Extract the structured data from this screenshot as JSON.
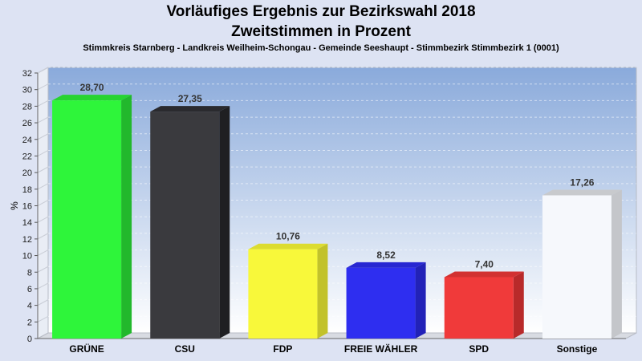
{
  "header": {
    "title_line1": "Vorläufiges Ergebnis zur Bezirkswahl 2018",
    "title_line2": "Zweitstimmen in Prozent",
    "subtitle": "Stimmkreis Starnberg - Landkreis Weilheim-Schongau - Gemeinde Seeshaupt - Stimmbezirk Stimmbezirk 1 (0001)"
  },
  "chart_data": {
    "type": "bar",
    "title": "Vorläufiges Ergebnis zur Bezirkswahl 2018",
    "subtitle": "Zweitstimmen in Prozent",
    "ylabel": "%",
    "xlabel": "",
    "ylim": [
      0,
      32
    ],
    "yticks": [
      0,
      2,
      4,
      6,
      8,
      10,
      12,
      14,
      16,
      18,
      20,
      22,
      24,
      26,
      28,
      30,
      32
    ],
    "grid": true,
    "legend": "none",
    "categories": [
      "GRÜNE",
      "CSU",
      "FDP",
      "FREIE WÄHLER",
      "SPD",
      "Sonstige"
    ],
    "values": [
      28.7,
      27.35,
      10.76,
      8.52,
      7.4,
      17.26
    ],
    "value_labels": [
      "28,70",
      "27,35",
      "10,76",
      "8,52",
      "7,40",
      "17,26"
    ],
    "colors": [
      "#2ef53a",
      "#3a3a3e",
      "#f8f83a",
      "#2e2ef0",
      "#f03a3a",
      "#f6f8fc"
    ],
    "side_colors": [
      "#22b82c",
      "#1f1f22",
      "#c2c22a",
      "#2222b8",
      "#b82a2a",
      "#c4c6ca"
    ],
    "top_colors": [
      "#27d431",
      "#2a2a2e",
      "#dcdc30",
      "#2727d2",
      "#d23131",
      "#c8cacd"
    ],
    "plot_background": [
      "#8aaadb",
      "#ffffff"
    ]
  }
}
